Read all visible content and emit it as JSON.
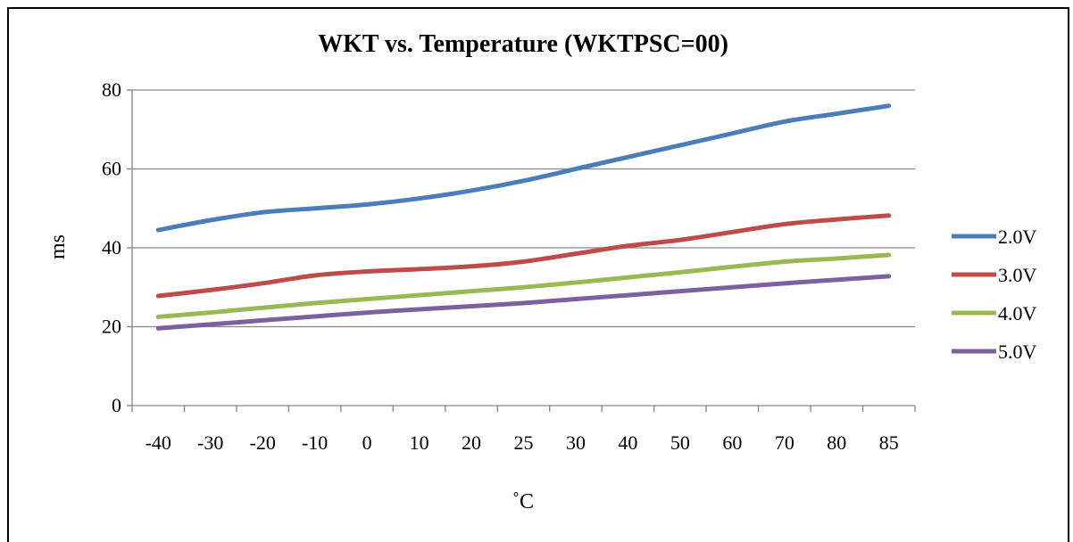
{
  "chart_data": {
    "type": "line",
    "title": "WKT vs. Temperature (WKTPSC=00)",
    "xlabel": "˚C",
    "ylabel": "ms",
    "categories": [
      "-40",
      "-30",
      "-20",
      "-10",
      "0",
      "10",
      "20",
      "25",
      "30",
      "40",
      "50",
      "60",
      "70",
      "80",
      "85"
    ],
    "ylim": [
      0,
      80
    ],
    "yticks": [
      0,
      20,
      40,
      60,
      80
    ],
    "grid": "horizontal",
    "legend_position": "right",
    "series": [
      {
        "name": "2.0V",
        "color": "#4a7ebb",
        "values": [
          44.5,
          47,
          49,
          50,
          51,
          52.5,
          54.5,
          57,
          60,
          63,
          66,
          69,
          72,
          74,
          76
        ]
      },
      {
        "name": "3.0V",
        "color": "#be4b48",
        "values": [
          27.8,
          29.3,
          31,
          33,
          34,
          34.6,
          35.3,
          36.5,
          38.5,
          40.5,
          42,
          44,
          46,
          47.2,
          48.2
        ]
      },
      {
        "name": "4.0V",
        "color": "#98b954",
        "values": [
          22.5,
          23.6,
          24.8,
          26,
          27,
          28,
          29,
          30,
          31.2,
          32.5,
          33.8,
          35.2,
          36.5,
          37.3,
          38.2
        ]
      },
      {
        "name": "5.0V",
        "color": "#7d60a0",
        "values": [
          19.6,
          20.6,
          21.6,
          22.6,
          23.6,
          24.4,
          25.2,
          26,
          27,
          28,
          29,
          30,
          31,
          31.9,
          32.8
        ]
      }
    ]
  }
}
